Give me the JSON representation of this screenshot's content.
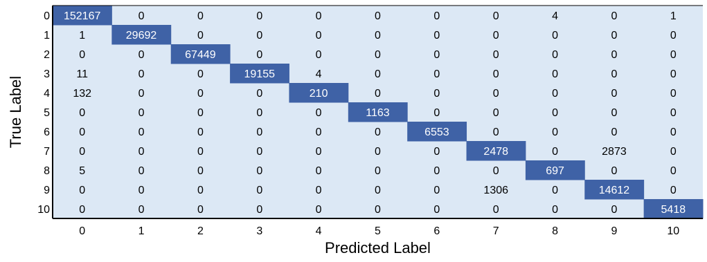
{
  "chart_data": {
    "type": "heatmap",
    "title": "",
    "xlabel": "Predicted Label",
    "ylabel": "True Label",
    "row_labels": [
      "0",
      "1",
      "2",
      "3",
      "4",
      "5",
      "6",
      "7",
      "8",
      "9",
      "10"
    ],
    "col_labels": [
      "0",
      "1",
      "2",
      "3",
      "4",
      "5",
      "6",
      "7",
      "8",
      "9",
      "10"
    ],
    "matrix": [
      [
        152167,
        0,
        0,
        0,
        0,
        0,
        0,
        0,
        4,
        0,
        1
      ],
      [
        1,
        29692,
        0,
        0,
        0,
        0,
        0,
        0,
        0,
        0,
        0
      ],
      [
        0,
        0,
        67449,
        0,
        0,
        0,
        0,
        0,
        0,
        0,
        0
      ],
      [
        11,
        0,
        0,
        19155,
        4,
        0,
        0,
        0,
        0,
        0,
        0
      ],
      [
        132,
        0,
        0,
        0,
        210,
        0,
        0,
        0,
        0,
        0,
        0
      ],
      [
        0,
        0,
        0,
        0,
        0,
        1163,
        0,
        0,
        0,
        0,
        0
      ],
      [
        0,
        0,
        0,
        0,
        0,
        0,
        6553,
        0,
        0,
        0,
        0
      ],
      [
        0,
        0,
        0,
        0,
        0,
        0,
        0,
        2478,
        0,
        2873,
        0
      ],
      [
        5,
        0,
        0,
        0,
        0,
        0,
        0,
        0,
        697,
        0,
        0
      ],
      [
        0,
        0,
        0,
        0,
        0,
        0,
        0,
        1306,
        0,
        14612,
        0
      ],
      [
        0,
        0,
        0,
        0,
        0,
        0,
        0,
        0,
        0,
        0,
        5418
      ]
    ],
    "colors": {
      "background_cell": "#dce8f5",
      "diagonal_cell": "#3f62a6",
      "diagonal_text": "#ffffff",
      "cell_text": "#000000",
      "frame": "#000000"
    }
  }
}
